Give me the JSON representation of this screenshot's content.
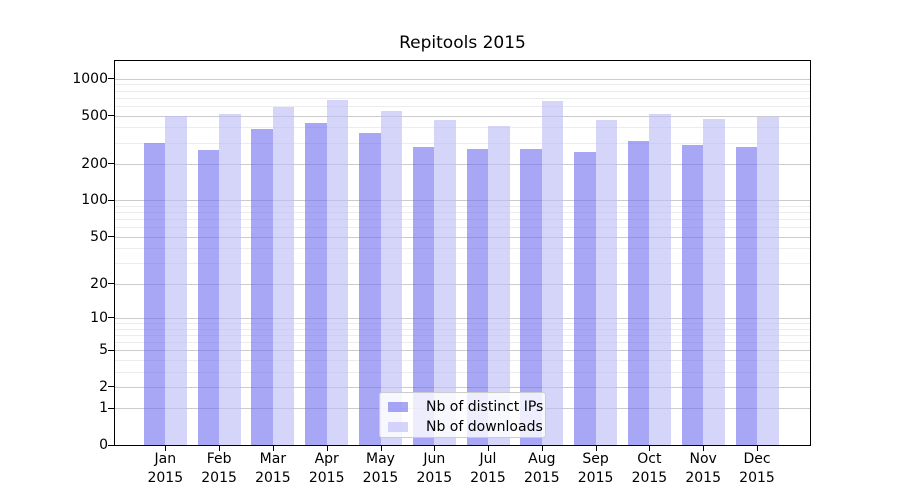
{
  "chart_data": {
    "type": "bar",
    "title": "Repitools 2015",
    "categories": [
      "Jan 2015",
      "Feb 2015",
      "Mar 2015",
      "Apr 2015",
      "May 2015",
      "Jun 2015",
      "Jul 2015",
      "Aug 2015",
      "Sep 2015",
      "Oct 2015",
      "Nov 2015",
      "Dec 2015"
    ],
    "series": [
      {
        "name": "Nb of distinct IPs",
        "color": "rgba(108,108,240,0.60)",
        "values": [
          300,
          261,
          388,
          436,
          358,
          277,
          268,
          268,
          252,
          312,
          288,
          275
        ]
      },
      {
        "name": "Nb of downloads",
        "color": "rgba(188,188,247,0.62)",
        "values": [
          500,
          517,
          591,
          672,
          549,
          461,
          413,
          664,
          461,
          517,
          467,
          490
        ]
      }
    ],
    "xlabel": "",
    "ylabel": "",
    "yscale": "log1p",
    "ylim": [
      0,
      1380
    ],
    "y_major_ticks": [
      0,
      1,
      2,
      5,
      10,
      20,
      50,
      100,
      200,
      500,
      1000
    ],
    "y_minor_gridlines": [
      3,
      4,
      6,
      7,
      8,
      9,
      30,
      40,
      60,
      70,
      80,
      90,
      300,
      400,
      600,
      700,
      800,
      900
    ],
    "grid": "horizontal",
    "legend_position": "lower-center"
  },
  "colors": {
    "bar_distinct_ips": "rgba(108,108,240,0.60)",
    "bar_downloads": "rgba(188,188,247,0.62)",
    "grid_major": "#cccccc",
    "grid_minor": "#ececec",
    "axis_line": "#000000",
    "legend_border": "#cccccc",
    "legend_bg": "rgba(255,255,255,0.8)",
    "text": "#000000"
  }
}
